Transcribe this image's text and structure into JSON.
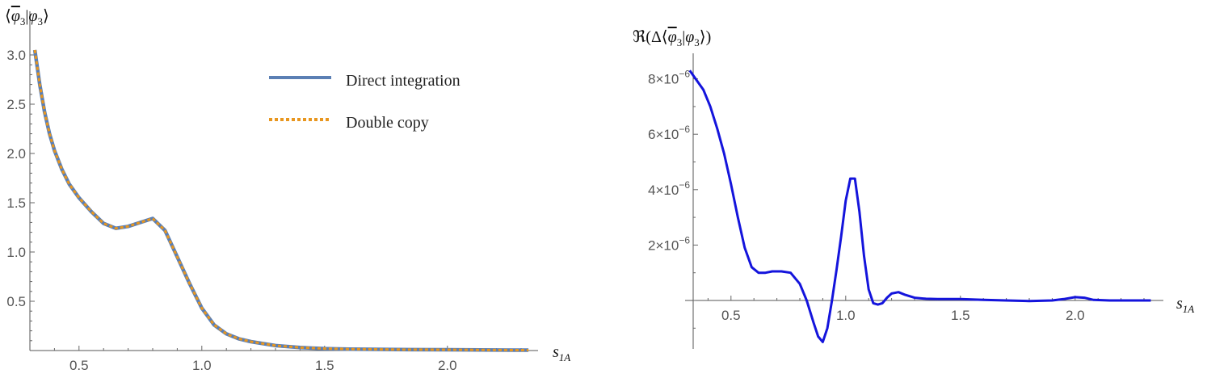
{
  "chart_data": [
    {
      "type": "line",
      "title": "",
      "ylabel": "⟨φ3|φ3⟩",
      "xlabel": "s1A",
      "xlim": [
        0.3,
        2.35
      ],
      "ylim": [
        0,
        3.15
      ],
      "x_ticks": [
        "0.5",
        "1.0",
        "1.5",
        "2.0"
      ],
      "y_ticks": [
        "0.5",
        "1.0",
        "1.5",
        "2.0",
        "2.5",
        "3.0"
      ],
      "grid": false,
      "legend": "top-right",
      "series": [
        {
          "name": "Direct integration",
          "color": "#5b7fb4",
          "style": "solid",
          "x": [
            0.32,
            0.34,
            0.36,
            0.38,
            0.4,
            0.43,
            0.46,
            0.5,
            0.55,
            0.6,
            0.65,
            0.7,
            0.75,
            0.8,
            0.85,
            0.9,
            0.95,
            1.0,
            1.05,
            1.1,
            1.15,
            1.2,
            1.3,
            1.4,
            1.5,
            1.6,
            1.8,
            2.0,
            2.2,
            2.33
          ],
          "y": [
            3.05,
            2.7,
            2.42,
            2.2,
            2.03,
            1.84,
            1.69,
            1.55,
            1.41,
            1.29,
            1.24,
            1.26,
            1.3,
            1.34,
            1.22,
            0.95,
            0.68,
            0.43,
            0.26,
            0.17,
            0.12,
            0.09,
            0.05,
            0.03,
            0.02,
            0.015,
            0.01,
            0.008,
            0.005,
            0.004
          ]
        },
        {
          "name": "Double copy",
          "color": "#e8961e",
          "style": "dashed",
          "x": [
            0.32,
            0.34,
            0.36,
            0.38,
            0.4,
            0.43,
            0.46,
            0.5,
            0.55,
            0.6,
            0.65,
            0.7,
            0.75,
            0.8,
            0.85,
            0.9,
            0.95,
            1.0,
            1.05,
            1.1,
            1.15,
            1.2,
            1.3,
            1.4,
            1.5,
            1.6,
            1.8,
            2.0,
            2.2,
            2.33
          ],
          "y": [
            3.05,
            2.7,
            2.42,
            2.2,
            2.03,
            1.84,
            1.69,
            1.55,
            1.41,
            1.29,
            1.24,
            1.26,
            1.3,
            1.34,
            1.22,
            0.95,
            0.68,
            0.43,
            0.26,
            0.17,
            0.12,
            0.09,
            0.05,
            0.03,
            0.02,
            0.015,
            0.01,
            0.008,
            0.005,
            0.004
          ]
        }
      ]
    },
    {
      "type": "line",
      "title": "",
      "ylabel": "ℜ(Δ⟨φ3|φ3⟩)",
      "xlabel": "s1A",
      "xlim": [
        0.3,
        2.35
      ],
      "ylim": [
        -1.7e-06,
        8.6e-06
      ],
      "x_ticks": [
        "0.5",
        "1.0",
        "1.5",
        "2.0"
      ],
      "y_ticks": [
        {
          "value": 2e-06,
          "mantissa": "2.",
          "exp": "−6"
        },
        {
          "value": 4e-06,
          "mantissa": "4.",
          "exp": "−6"
        },
        {
          "value": 6e-06,
          "mantissa": "6.",
          "exp": "−6"
        },
        {
          "value": 8e-06,
          "mantissa": "8.",
          "exp": "−6"
        }
      ],
      "grid": false,
      "series": [
        {
          "color": "#1414dc",
          "x": [
            0.32,
            0.35,
            0.38,
            0.41,
            0.44,
            0.47,
            0.5,
            0.53,
            0.56,
            0.59,
            0.62,
            0.65,
            0.68,
            0.72,
            0.76,
            0.8,
            0.83,
            0.86,
            0.88,
            0.9,
            0.92,
            0.94,
            0.96,
            0.98,
            1.0,
            1.02,
            1.04,
            1.06,
            1.08,
            1.1,
            1.12,
            1.14,
            1.16,
            1.18,
            1.2,
            1.23,
            1.26,
            1.3,
            1.35,
            1.4,
            1.5,
            1.6,
            1.7,
            1.8,
            1.9,
            1.95,
            2.0,
            2.04,
            2.08,
            2.15,
            2.25,
            2.33
          ],
          "y": [
            8.3e-06,
            7.95e-06,
            7.6e-06,
            7e-06,
            6.2e-06,
            5.3e-06,
            4.2e-06,
            3e-06,
            1.9e-06,
            1.2e-06,
            1e-06,
            1e-06,
            1.05e-06,
            1.05e-06,
            1e-06,
            6e-07,
            0.0,
            -8e-07,
            -1.3e-06,
            -1.5e-06,
            -1e-06,
            0.0,
            1.1e-06,
            2.3e-06,
            3.6e-06,
            4.4e-06,
            4.4e-06,
            3.2e-06,
            1.6e-06,
            4e-07,
            -1e-07,
            -1.5e-07,
            -1e-07,
            1e-07,
            2.5e-07,
            3e-07,
            2e-07,
            1e-07,
            6e-08,
            5e-08,
            5e-08,
            2e-08,
            0.0,
            -2e-08,
            0.0,
            5e-08,
            1.2e-07,
            1e-07,
            2e-08,
            0.0,
            0.0,
            0.0
          ]
        }
      ]
    }
  ]
}
